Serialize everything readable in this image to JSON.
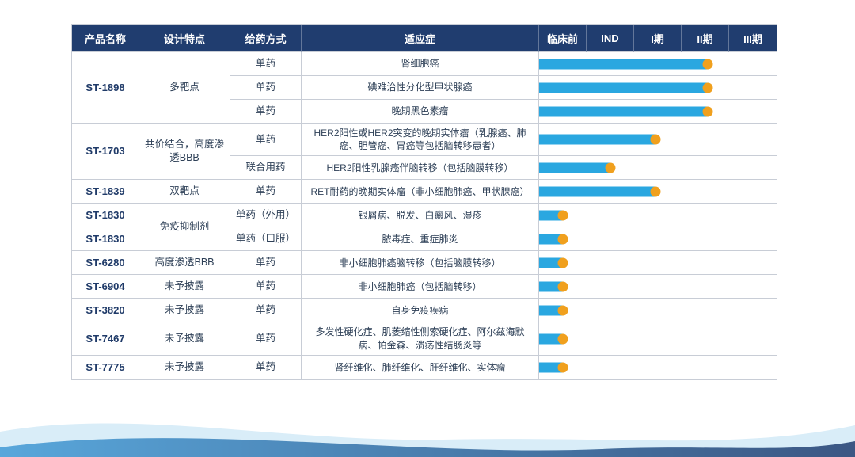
{
  "colors": {
    "header_bg": "#203d6f",
    "header_text": "#ffffff",
    "bar": "#2aa7e0",
    "dot": "#f0a01e",
    "text": "#2e4057",
    "border": "#c8cdd6",
    "wave_light": "#d9edf8",
    "wave_blue": "#4a9fd8"
  },
  "table": {
    "headers": [
      "产品名称",
      "设计特点",
      "给药方式",
      "适应症",
      "临床前",
      "IND",
      "I期",
      "II期",
      "III期"
    ],
    "phase_labels": [
      "临床前",
      "IND",
      "I期",
      "II期",
      "III期"
    ],
    "rows": [
      {
        "product": {
          "text": "ST-1898",
          "span": 3
        },
        "feature": {
          "text": "多靶点",
          "span": 3
        },
        "method": "单药",
        "indication": "肾细胞癌",
        "progress": 0.71
      },
      {
        "method": "单药",
        "indication": "碘难治性分化型甲状腺癌",
        "progress": 0.71
      },
      {
        "method": "单药",
        "indication": "晚期黑色素瘤",
        "progress": 0.71
      },
      {
        "product": {
          "text": "ST-1703",
          "span": 2
        },
        "feature": {
          "text": "共价结合，高度渗透BBB",
          "span": 2
        },
        "method": "单药",
        "indication": "HER2阳性或HER2突变的晚期实体瘤（乳腺癌、肺癌、胆管癌、胃癌等包括脑转移患者）",
        "progress": 0.49
      },
      {
        "method": "联合用药",
        "indication": "HER2阳性乳腺癌伴脑转移（包括脑膜转移）",
        "progress": 0.3
      },
      {
        "product": {
          "text": "ST-1839",
          "span": 1
        },
        "feature": {
          "text": "双靶点",
          "span": 1
        },
        "method": "单药",
        "indication": "RET耐药的晚期实体瘤（非小细胞肺癌、甲状腺癌）",
        "progress": 0.49
      },
      {
        "product": {
          "text": "ST-1830",
          "span": 1
        },
        "feature": {
          "text": "免疫抑制剂",
          "span": 2
        },
        "method": "单药（外用）",
        "indication": "银屑病、脱发、白癜风、湿疹",
        "progress": 0.1
      },
      {
        "product": {
          "text": "ST-1830",
          "span": 1
        },
        "method": "单药（口服）",
        "indication": "脓毒症、重症肺炎",
        "progress": 0.1
      },
      {
        "product": {
          "text": "ST-6280",
          "span": 1
        },
        "feature": {
          "text": "高度渗透BBB",
          "span": 1
        },
        "method": "单药",
        "indication": "非小细胞肺癌脑转移（包括脑膜转移）",
        "progress": 0.1
      },
      {
        "product": {
          "text": "ST-6904",
          "span": 1
        },
        "feature": {
          "text": "未予披露",
          "span": 1
        },
        "method": "单药",
        "indication": "非小细胞肺癌（包括脑转移）",
        "progress": 0.1
      },
      {
        "product": {
          "text": "ST-3820",
          "span": 1
        },
        "feature": {
          "text": "未予披露",
          "span": 1
        },
        "method": "单药",
        "indication": "自身免疫疾病",
        "progress": 0.1
      },
      {
        "product": {
          "text": "ST-7467",
          "span": 1
        },
        "feature": {
          "text": "未予披露",
          "span": 1
        },
        "method": "单药",
        "indication": "多发性硬化症、肌萎缩性侧索硬化症、阿尔兹海默病、帕金森、溃疡性结肠炎等",
        "progress": 0.1
      },
      {
        "product": {
          "text": "ST-7775",
          "span": 1
        },
        "feature": {
          "text": "未予披露",
          "span": 1
        },
        "method": "单药",
        "indication": "肾纤维化、肺纤维化、肝纤维化、实体瘤",
        "progress": 0.1
      }
    ]
  },
  "chart_data": {
    "type": "table",
    "phase_axis": [
      "临床前",
      "IND",
      "I期",
      "II期",
      "III期"
    ],
    "rows": [
      {
        "product": "ST-1898",
        "feature": "多靶点",
        "method": "单药",
        "indication": "肾细胞癌",
        "phase_reached": "II期",
        "progress_fraction": 0.71
      },
      {
        "product": "ST-1898",
        "feature": "多靶点",
        "method": "单药",
        "indication": "碘难治性分化型甲状腺癌",
        "phase_reached": "II期",
        "progress_fraction": 0.71
      },
      {
        "product": "ST-1898",
        "feature": "多靶点",
        "method": "单药",
        "indication": "晚期黑色素瘤",
        "phase_reached": "II期",
        "progress_fraction": 0.71
      },
      {
        "product": "ST-1703",
        "feature": "共价结合，高度渗透BBB",
        "method": "单药",
        "indication": "HER2阳性或HER2突变的晚期实体瘤（乳腺癌、肺癌、胆管癌、胃癌等包括脑转移患者）",
        "phase_reached": "I期",
        "progress_fraction": 0.49
      },
      {
        "product": "ST-1703",
        "feature": "共价结合，高度渗透BBB",
        "method": "联合用药",
        "indication": "HER2阳性乳腺癌伴脑转移（包括脑膜转移）",
        "phase_reached": "IND",
        "progress_fraction": 0.3
      },
      {
        "product": "ST-1839",
        "feature": "双靶点",
        "method": "单药",
        "indication": "RET耐药的晚期实体瘤（非小细胞肺癌、甲状腺癌）",
        "phase_reached": "I期",
        "progress_fraction": 0.49
      },
      {
        "product": "ST-1830",
        "feature": "免疫抑制剂",
        "method": "单药（外用）",
        "indication": "银屑病、脱发、白癜风、湿疹",
        "phase_reached": "临床前",
        "progress_fraction": 0.1
      },
      {
        "product": "ST-1830",
        "feature": "免疫抑制剂",
        "method": "单药（口服）",
        "indication": "脓毒症、重症肺炎",
        "phase_reached": "临床前",
        "progress_fraction": 0.1
      },
      {
        "product": "ST-6280",
        "feature": "高度渗透BBB",
        "method": "单药",
        "indication": "非小细胞肺癌脑转移（包括脑膜转移）",
        "phase_reached": "临床前",
        "progress_fraction": 0.1
      },
      {
        "product": "ST-6904",
        "feature": "未予披露",
        "method": "单药",
        "indication": "非小细胞肺癌（包括脑转移）",
        "phase_reached": "临床前",
        "progress_fraction": 0.1
      },
      {
        "product": "ST-3820",
        "feature": "未予披露",
        "method": "单药",
        "indication": "自身免疫疾病",
        "phase_reached": "临床前",
        "progress_fraction": 0.1
      },
      {
        "product": "ST-7467",
        "feature": "未予披露",
        "method": "单药",
        "indication": "多发性硬化症、肌萎缩性侧索硬化症、阿尔兹海默病、帕金森、溃疡性结肠炎等",
        "phase_reached": "临床前",
        "progress_fraction": 0.1
      },
      {
        "product": "ST-7775",
        "feature": "未予披露",
        "method": "单药",
        "indication": "肾纤维化、肺纤维化、肝纤维化、实体瘤",
        "phase_reached": "临床前",
        "progress_fraction": 0.1
      }
    ]
  }
}
